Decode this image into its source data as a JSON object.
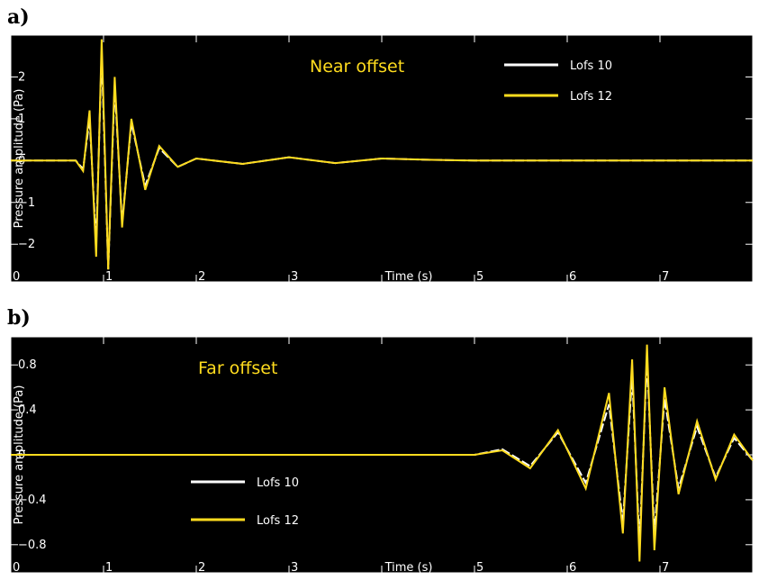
{
  "chart_data": [
    {
      "type": "line",
      "panel_label": "a)",
      "title": "Near offset",
      "xlabel": "Time (s)",
      "ylabel": "Pressure amplitude (Pa)",
      "xlim": [
        0,
        8
      ],
      "ylim": [
        -2.9,
        3.0
      ],
      "x_ticks": [
        0,
        1,
        2,
        3,
        4,
        5,
        6,
        7
      ],
      "x_tick_labels": [
        "0",
        "1",
        "2",
        "3",
        "",
        "5",
        "6",
        "7"
      ],
      "y_ticks": [
        -2,
        -1,
        0,
        1,
        2
      ],
      "y_tick_labels": [
        "−2",
        "−1",
        "0",
        "1",
        "2"
      ],
      "legend_position": "top-right",
      "background": "#000000",
      "series": [
        {
          "name": "Lofs 10",
          "color": "#ffffff",
          "style": "dashed",
          "x": [
            0,
            0.7,
            0.78,
            0.85,
            0.92,
            0.98,
            1.05,
            1.12,
            1.2,
            1.3,
            1.45,
            1.6,
            1.8,
            2.0,
            2.5,
            3.0,
            3.5,
            4.0,
            4.5,
            5.0,
            6.0,
            7.0,
            8.0
          ],
          "y": [
            0,
            0,
            -0.2,
            1.0,
            -2.0,
            2.6,
            -2.6,
            1.8,
            -1.5,
            0.9,
            -0.6,
            0.3,
            -0.15,
            0.05,
            -0.08,
            0.08,
            -0.06,
            0.05,
            0.02,
            0,
            0,
            0,
            0
          ]
        },
        {
          "name": "Lofs 12",
          "color": "#ffdc1e",
          "style": "solid",
          "x": [
            0,
            0.7,
            0.78,
            0.85,
            0.92,
            0.98,
            1.05,
            1.12,
            1.2,
            1.3,
            1.45,
            1.6,
            1.8,
            2.0,
            2.5,
            3.0,
            3.5,
            4.0,
            4.5,
            5.0,
            6.0,
            7.0,
            8.0
          ],
          "y": [
            0,
            0,
            -0.25,
            1.2,
            -2.3,
            2.9,
            -2.6,
            2.0,
            -1.6,
            1.0,
            -0.7,
            0.35,
            -0.15,
            0.05,
            -0.08,
            0.08,
            -0.06,
            0.05,
            0.02,
            0,
            0,
            0,
            0
          ]
        }
      ]
    },
    {
      "type": "line",
      "panel_label": "b)",
      "title": "Far offset",
      "xlabel": "Time (s)",
      "ylabel": "Pressure amplitude (Pa)",
      "xlim": [
        0,
        8
      ],
      "ylim": [
        -1.05,
        1.05
      ],
      "x_ticks": [
        0,
        1,
        2,
        3,
        4,
        5,
        6,
        7
      ],
      "x_tick_labels": [
        "0",
        "1",
        "2",
        "3",
        "",
        "5",
        "6",
        "7"
      ],
      "y_ticks": [
        -0.8,
        -0.4,
        0,
        0.4,
        0.8
      ],
      "y_tick_labels": [
        "−0.8",
        "−0.4",
        "0",
        "0.4",
        "0.8"
      ],
      "legend_position": "bottom-left",
      "background": "#000000",
      "series": [
        {
          "name": "Lofs 10",
          "color": "#ffffff",
          "style": "dashed",
          "x": [
            0,
            5.0,
            5.3,
            5.6,
            5.9,
            6.2,
            6.45,
            6.6,
            6.7,
            6.78,
            6.86,
            6.94,
            7.05,
            7.2,
            7.4,
            7.6,
            7.8,
            8.0
          ],
          "y": [
            0,
            0,
            0.05,
            -0.1,
            0.2,
            -0.25,
            0.45,
            -0.6,
            0.7,
            -0.8,
            0.85,
            -0.7,
            0.5,
            -0.3,
            0.25,
            -0.2,
            0.15,
            -0.05
          ]
        },
        {
          "name": "Lofs 12",
          "color": "#ffdc1e",
          "style": "solid",
          "x": [
            0,
            5.0,
            5.3,
            5.6,
            5.9,
            6.2,
            6.45,
            6.6,
            6.7,
            6.78,
            6.86,
            6.94,
            7.05,
            7.2,
            7.4,
            7.6,
            7.8,
            8.0
          ],
          "y": [
            0,
            0,
            0.04,
            -0.12,
            0.22,
            -0.3,
            0.55,
            -0.7,
            0.85,
            -0.95,
            0.98,
            -0.85,
            0.6,
            -0.35,
            0.3,
            -0.22,
            0.18,
            -0.05
          ]
        }
      ]
    }
  ]
}
